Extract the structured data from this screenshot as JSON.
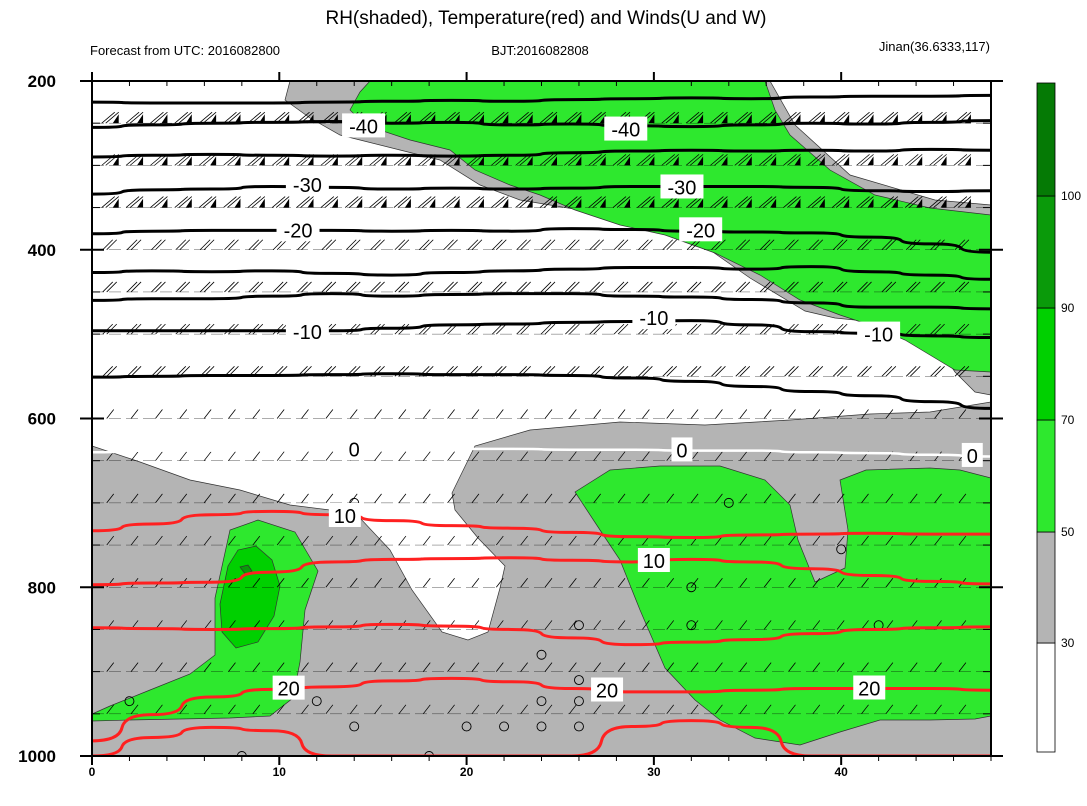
{
  "header": {
    "title": "RH(shaded), Temperature(red) and Winds(U and W)",
    "left_note": "Forecast from UTC: 2016082800",
    "center_note": "BJT:2016082808",
    "right_note": "Jinan(36.6333,117)"
  },
  "colors": {
    "rh_30_50": "#b4b4b4",
    "rh_50_70": "#2ee82e",
    "rh_70_90": "#00d000",
    "rh_90_100": "#0a9a0a",
    "rh_above_100": "#057a05",
    "temp_warm": "#ff2020",
    "temp_cold": "#000000"
  },
  "chart_data": {
    "type": "contour",
    "x_ticks": [
      0,
      10,
      20,
      30,
      40
    ],
    "xlim": [
      0,
      48
    ],
    "y_ticks": [
      200,
      400,
      600,
      800,
      1000
    ],
    "ylim": [
      1000,
      200
    ],
    "y_levels": [
      200,
      250,
      300,
      350,
      400,
      450,
      500,
      550,
      600,
      650,
      700,
      750,
      800,
      850,
      900,
      950,
      1000
    ],
    "colorbar": {
      "levels": [
        30,
        50,
        70,
        90,
        100
      ],
      "colors": [
        "#ffffff",
        "#b4b4b4",
        "#2ee82e",
        "#00d000",
        "#0a9a0a",
        "#057a05"
      ]
    },
    "temperature_contours": [
      {
        "value": -40,
        "label": "-40",
        "color": "#000000",
        "y": [
          255,
          252,
          250,
          249,
          248,
          250,
          249,
          252,
          251,
          253,
          254,
          252,
          250,
          251,
          249,
          247
        ]
      },
      {
        "value": -40,
        "label": "",
        "color": "#000000",
        "y": [
          225,
          226,
          226,
          226,
          225,
          224,
          223,
          224,
          222,
          221,
          220,
          221,
          219,
          218,
          218,
          217
        ]
      },
      {
        "value": -40,
        "label": "",
        "color": "#000000",
        "y": [
          290,
          288,
          287,
          288,
          289,
          288,
          289,
          288,
          285,
          283,
          282,
          283,
          282,
          283,
          281,
          282
        ]
      },
      {
        "value": -30,
        "label": "-30",
        "color": "#000000",
        "y": [
          334,
          329,
          328,
          325,
          326,
          328,
          327,
          328,
          327,
          325,
          325,
          325,
          326,
          330,
          331,
          330
        ]
      },
      {
        "value": -20,
        "label": "-20",
        "color": "#000000",
        "y": [
          381,
          378,
          377,
          377,
          377,
          378,
          377,
          378,
          375,
          376,
          378,
          379,
          380,
          385,
          393,
          403
        ]
      },
      {
        "value": -20,
        "label": "",
        "color": "#000000",
        "y": [
          427,
          425,
          426,
          425,
          428,
          430,
          427,
          425,
          423,
          421,
          421,
          423,
          420,
          426,
          430,
          435
        ]
      },
      {
        "value": -20,
        "label": "",
        "color": "#000000",
        "y": [
          460,
          458,
          458,
          455,
          452,
          455,
          453,
          452,
          452,
          455,
          456,
          459,
          463,
          468,
          468,
          470
        ]
      },
      {
        "value": -10,
        "label": "-10",
        "color": "#000000",
        "y": [
          496,
          496,
          496,
          496,
          496,
          493,
          489,
          488,
          486,
          485,
          484,
          489,
          497,
          499,
          502,
          504
        ]
      },
      {
        "value": -10,
        "label": "",
        "color": "#000000",
        "y": [
          551,
          550,
          549,
          549,
          548,
          547,
          548,
          548,
          549,
          552,
          556,
          562,
          568,
          573,
          580,
          588
        ]
      },
      {
        "value": 0,
        "label": "0",
        "color": "#ffffff",
        "y": [
          640,
          638,
          638,
          637,
          637,
          636,
          636,
          636,
          637,
          637,
          638,
          638,
          640,
          641,
          643,
          645
        ]
      },
      {
        "value": 10,
        "label": "10",
        "color": "#ff2020",
        "y": [
          733,
          725,
          714,
          710,
          714,
          721,
          727,
          730,
          735,
          740,
          741,
          738,
          737,
          736,
          737,
          737
        ]
      },
      {
        "value": 10,
        "label": "10",
        "color": "#ff2020",
        "y": [
          797,
          795,
          794,
          782,
          770,
          767,
          766,
          765,
          768,
          770,
          767,
          770,
          778,
          786,
          793,
          796
        ]
      },
      {
        "value": 20,
        "label": "",
        "color": "#ff2020",
        "y": [
          848,
          849,
          850,
          849,
          847,
          844,
          846,
          850,
          860,
          868,
          865,
          862,
          855,
          850,
          848,
          847
        ]
      },
      {
        "value": 20,
        "label": "20",
        "color": "#ff2020",
        "y": [
          982,
          951,
          930,
          921,
          918,
          911,
          908,
          912,
          920,
          924,
          924,
          922,
          920,
          920,
          920,
          922
        ]
      },
      {
        "value": 20,
        "label": "",
        "color": "#ff2020",
        "y": [
          1000,
          978,
          966,
          970,
          1000,
          1000,
          1000,
          1000,
          1000,
          965,
          958,
          966,
          1000,
          1000,
          1000,
          1000
        ]
      }
    ]
  }
}
